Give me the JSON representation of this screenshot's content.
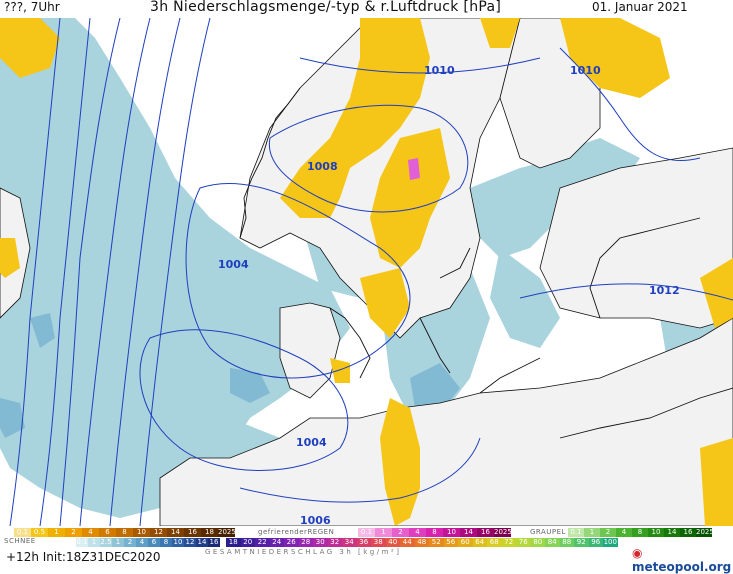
{
  "header": {
    "left": "???, 7Uhr",
    "title": "3h Niederschlagsmenge/-typ & r.Luftdruck [hPa]",
    "date": "01. Januar 2021"
  },
  "map": {
    "isobar_labels": [
      "1010",
      "1010",
      "1008",
      "1004",
      "1012",
      "1004",
      "1006"
    ],
    "colors": {
      "rain": "#f5c518",
      "snow": "#a9d3dd",
      "freezing": "#e15fd7",
      "isobar": "#1f3fbf",
      "coast": "#111111"
    }
  },
  "legend": {
    "rain": {
      "values": [
        "0.1",
        "0.5",
        "1",
        "2",
        "4",
        "6",
        "8",
        "10",
        "12",
        "14",
        "16",
        "18",
        "2025+"
      ],
      "colors": [
        "#f8e08a",
        "#f5c518",
        "#f0b000",
        "#eda000",
        "#e08a00",
        "#d07a00",
        "#bf6d00",
        "#a85a00",
        "#944d00",
        "#7e4000",
        "#6a3500",
        "#582a00",
        "#472000"
      ]
    },
    "freezing": {
      "caption": "gefrierenderREGEN",
      "values": [
        "0.1",
        "1",
        "2",
        "4",
        "8",
        "10",
        "14",
        "16",
        "2025+"
      ],
      "colors": [
        "#f7b9e6",
        "#ef8bd9",
        "#e75fcc",
        "#df3fbf",
        "#d723ae",
        "#c31597",
        "#ac0c7f",
        "#950567",
        "#7d0050"
      ]
    },
    "graupel": {
      "caption": "GRAUPEL",
      "values": [
        "0.1",
        "1",
        "2",
        "4",
        "8",
        "10",
        "14",
        "16",
        "2025+"
      ],
      "colors": [
        "#bfe7a8",
        "#95d77a",
        "#6cc64f",
        "#4bb330",
        "#35a01f",
        "#248c12",
        "#16790a",
        "#0c6504",
        "#055200"
      ]
    },
    "snow": {
      "caption": "SCHNEE",
      "values": [
        "0.1",
        "1",
        "2.5",
        "1",
        "2",
        "4",
        "6",
        "8",
        "10",
        "12",
        "14",
        "16"
      ],
      "colors": [
        "#d8eef2",
        "#bfe2ea",
        "#a9d3dd",
        "#8fc4d6",
        "#75b2cf",
        "#5e9fc7",
        "#4a8bbd",
        "#3b77b2",
        "#2f62a5",
        "#274e97",
        "#203b87",
        "#1b2a76"
      ]
    },
    "total": {
      "values": [
        "18",
        "20",
        "22",
        "24",
        "26",
        "28",
        "30",
        "32",
        "34",
        "36",
        "38",
        "40",
        "44",
        "48",
        "52",
        "56",
        "60",
        "64",
        "68",
        "72",
        "76",
        "80",
        "84",
        "88",
        "92",
        "96",
        "100"
      ],
      "colors": [
        "#2b1d8c",
        "#3f1f9a",
        "#5420a6",
        "#6a22ae",
        "#8024b2",
        "#9727b0",
        "#ac2aa6",
        "#be2e94",
        "#cc3580",
        "#d63f6a",
        "#dd4a55",
        "#e25842",
        "#e56832",
        "#e77826",
        "#e78a1e",
        "#e69c1a",
        "#e3ad19",
        "#dfbf1c",
        "#d8cd24",
        "#c9d52f",
        "#b5d83b",
        "#9fd848",
        "#86d455",
        "#6ccd61",
        "#52c36c",
        "#3ab776",
        "#1fa97f"
      ]
    },
    "total_caption": "GESAMTNIEDERSCHLAG 3h [kg/m²]"
  },
  "footer": {
    "run": "+12h  Init:18Z31DEC2020",
    "logo": "meteopool.org"
  }
}
